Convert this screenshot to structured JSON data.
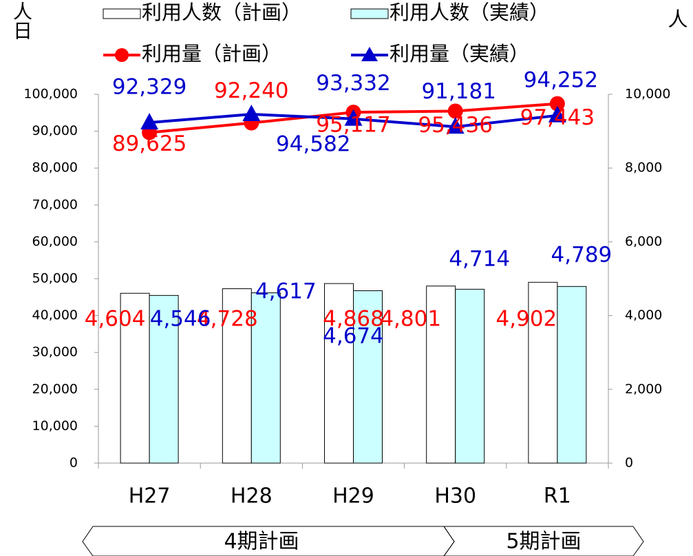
{
  "chart_data": {
    "type": "bar_line",
    "y_label": "人日",
    "y2_label": "人",
    "categories": [
      "H27",
      "H28",
      "H29",
      "H30",
      "R1"
    ],
    "series": [
      {
        "name": "利用人数（計画）",
        "kind": "bar",
        "axis": "y2",
        "color": "#ffffff",
        "values": [
          4604,
          4728,
          4868,
          4801,
          4902
        ],
        "value_labels": [
          "4,604",
          "4,728",
          "4,868",
          "4,801",
          "4,902"
        ],
        "label_color": "#ff0000"
      },
      {
        "name": "利用人数（実績）",
        "kind": "bar",
        "axis": "y2",
        "color": "#ccffff",
        "values": [
          4546,
          4617,
          4674,
          4714,
          4789
        ],
        "value_labels": [
          "4,546",
          "4,617",
          "4,674",
          "4,714",
          "4,789"
        ],
        "label_color": "#0000cc"
      },
      {
        "name": "利用量（計画）",
        "kind": "line",
        "marker": "circle",
        "color": "#ff0000",
        "values": [
          89625,
          92240,
          95117,
          95436,
          97443
        ],
        "value_labels": [
          "89,625",
          "92,240",
          "95,117",
          "95,436",
          "97,443"
        ]
      },
      {
        "name": "利用量（実績）",
        "kind": "line",
        "marker": "triangle",
        "color": "#0000cc",
        "values": [
          92329,
          94582,
          93332,
          91181,
          94252
        ],
        "value_labels": [
          "92,329",
          "94,582",
          "93,332",
          "91,181",
          "94,252"
        ]
      }
    ],
    "ylim": [
      0,
      100000
    ],
    "yticks": [
      0,
      {
        "value": 10000,
        "label": "10,000"
      },
      {
        "value": 20000,
        "label": "20,000"
      },
      {
        "value": 30000,
        "label": "30,000"
      },
      {
        "value": 40000,
        "label": "40,000"
      },
      {
        "value": 50000,
        "label": "50,000"
      },
      {
        "value": 60000,
        "label": "60,000"
      },
      {
        "value": 70000,
        "label": "70,000"
      },
      {
        "value": 80000,
        "label": "80,000"
      },
      {
        "value": 90000,
        "label": "90,000"
      },
      {
        "value": 100000,
        "label": "100,000"
      }
    ],
    "y2lim": [
      0,
      10000
    ],
    "y2ticks": [
      0,
      {
        "value": 2000,
        "label": "2,000"
      },
      {
        "value": 4000,
        "label": "4,000"
      },
      {
        "value": 6000,
        "label": "6,000"
      },
      {
        "value": 8000,
        "label": "8,000"
      },
      {
        "value": 10000,
        "label": "10,000"
      }
    ],
    "period_labels": [
      "4期計画",
      "5期計画"
    ]
  }
}
